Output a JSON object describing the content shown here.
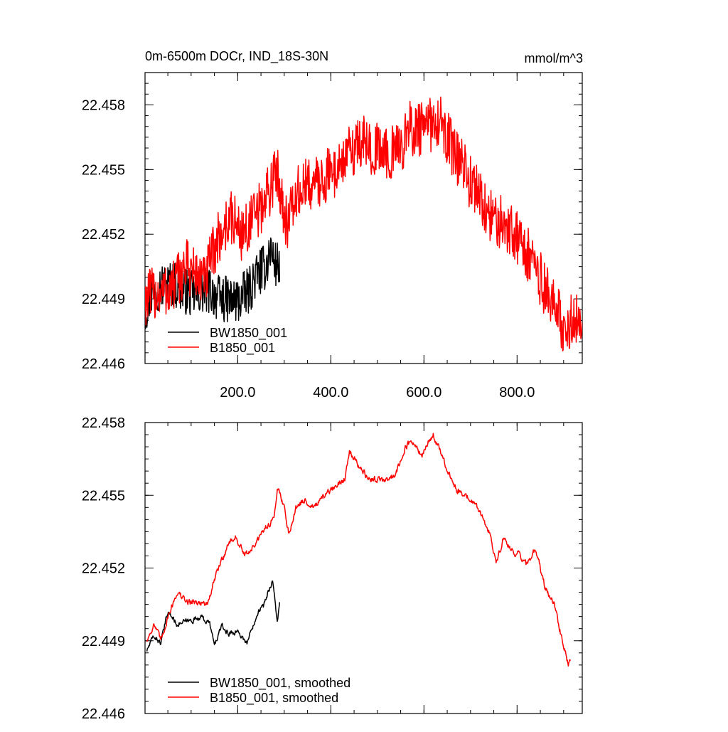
{
  "figure": {
    "title_left": "0m-6500m DOCr, IND_18S-30N",
    "title_right": "mmol/m^3"
  },
  "colors": {
    "black": "#000000",
    "red": "#ff0000"
  },
  "chart_data": [
    {
      "type": "line",
      "panel": "top",
      "title": "0m-6500m DOCr, IND_18S-30N",
      "units": "mmol/m^3",
      "xlim": [
        1,
        940
      ],
      "ylim": [
        22.446,
        22.4595
      ],
      "y_ticks": [
        22.446,
        22.449,
        22.452,
        22.455,
        22.458
      ],
      "y_tick_labels": [
        "22.446",
        "22.449",
        "22.452",
        "22.455",
        "22.458"
      ],
      "x_ticks": [
        200,
        400,
        600,
        800
      ],
      "x_tick_labels": [
        "200.0",
        "400.0",
        "600.0",
        "800.0"
      ],
      "legend_position": "bottom-left",
      "series": [
        {
          "name": "BW1850_001",
          "color": "#000000",
          "noise": 0.0011,
          "anchors": [
            [
              1,
              22.4485
            ],
            [
              20,
              22.4495
            ],
            [
              60,
              22.4497
            ],
            [
              100,
              22.4492
            ],
            [
              140,
              22.4494
            ],
            [
              160,
              22.449
            ],
            [
              200,
              22.4489
            ],
            [
              225,
              22.4494
            ],
            [
              240,
              22.4501
            ],
            [
              260,
              22.4505
            ],
            [
              270,
              22.4513
            ],
            [
              280,
              22.4506
            ],
            [
              290,
              22.4506
            ]
          ]
        },
        {
          "name": "B1850_001",
          "color": "#ff0000",
          "noise": 0.0013,
          "anchors": [
            [
              1,
              22.449
            ],
            [
              30,
              22.4493
            ],
            [
              60,
              22.4495
            ],
            [
              90,
              22.4505
            ],
            [
              130,
              22.4498
            ],
            [
              150,
              22.4514
            ],
            [
              185,
              22.4528
            ],
            [
              210,
              22.452
            ],
            [
              250,
              22.4532
            ],
            [
              285,
              22.4549
            ],
            [
              305,
              22.4525
            ],
            [
              330,
              22.4539
            ],
            [
              350,
              22.4543
            ],
            [
              380,
              22.4545
            ],
            [
              420,
              22.4552
            ],
            [
              460,
              22.4563
            ],
            [
              500,
              22.4559
            ],
            [
              540,
              22.4557
            ],
            [
              570,
              22.4569
            ],
            [
              600,
              22.4568
            ],
            [
              630,
              22.4574
            ],
            [
              660,
              22.456
            ],
            [
              690,
              22.4548
            ],
            [
              720,
              22.4537
            ],
            [
              740,
              22.4528
            ],
            [
              760,
              22.4526
            ],
            [
              790,
              22.4523
            ],
            [
              820,
              22.4512
            ],
            [
              850,
              22.4499
            ],
            [
              880,
              22.4486
            ],
            [
              900,
              22.4478
            ],
            [
              940,
              22.4481
            ]
          ]
        }
      ]
    },
    {
      "type": "line",
      "panel": "bottom",
      "xlim": [
        1,
        940
      ],
      "ylim": [
        22.446,
        22.458
      ],
      "y_ticks": [
        22.446,
        22.449,
        22.452,
        22.455,
        22.458
      ],
      "y_tick_labels": [
        "22.446",
        "22.449",
        "22.452",
        "22.455",
        "22.458"
      ],
      "x_ticks": [
        200,
        400,
        600,
        800
      ],
      "legend_position": "bottom-left",
      "series": [
        {
          "name": "BW1850_001, smoothed",
          "color": "#000000",
          "noise": 0.00022,
          "anchors": [
            [
              5,
              22.4486
            ],
            [
              20,
              22.4492
            ],
            [
              35,
              22.4489
            ],
            [
              50,
              22.4502
            ],
            [
              70,
              22.4497
            ],
            [
              95,
              22.4498
            ],
            [
              120,
              22.45
            ],
            [
              140,
              22.4497
            ],
            [
              150,
              22.4488
            ],
            [
              165,
              22.4496
            ],
            [
              180,
              22.4493
            ],
            [
              200,
              22.4494
            ],
            [
              220,
              22.4489
            ],
            [
              230,
              22.4495
            ],
            [
              245,
              22.4503
            ],
            [
              255,
              22.4504
            ],
            [
              265,
              22.451
            ],
            [
              275,
              22.4515
            ],
            [
              285,
              22.4498
            ],
            [
              290,
              22.4505
            ]
          ]
        },
        {
          "name": "B1850_001, smoothed",
          "color": "#ff0000",
          "noise": 0.00025,
          "anchors": [
            [
              5,
              22.449
            ],
            [
              20,
              22.4497
            ],
            [
              35,
              22.449
            ],
            [
              50,
              22.45
            ],
            [
              70,
              22.451
            ],
            [
              90,
              22.4506
            ],
            [
              115,
              22.4506
            ],
            [
              135,
              22.4505
            ],
            [
              155,
              22.4518
            ],
            [
              180,
              22.453
            ],
            [
              195,
              22.4533
            ],
            [
              215,
              22.4525
            ],
            [
              240,
              22.453
            ],
            [
              260,
              22.4537
            ],
            [
              278,
              22.454
            ],
            [
              285,
              22.4554
            ],
            [
              300,
              22.4545
            ],
            [
              310,
              22.4534
            ],
            [
              325,
              22.4545
            ],
            [
              345,
              22.4548
            ],
            [
              365,
              22.4545
            ],
            [
              380,
              22.4548
            ],
            [
              400,
              22.4552
            ],
            [
              430,
              22.4557
            ],
            [
              440,
              22.4569
            ],
            [
              460,
              22.4562
            ],
            [
              480,
              22.4557
            ],
            [
              520,
              22.4556
            ],
            [
              540,
              22.4559
            ],
            [
              560,
              22.457
            ],
            [
              575,
              22.4572
            ],
            [
              595,
              22.4566
            ],
            [
              610,
              22.4572
            ],
            [
              620,
              22.4575
            ],
            [
              635,
              22.4568
            ],
            [
              650,
              22.456
            ],
            [
              670,
              22.4552
            ],
            [
              690,
              22.455
            ],
            [
              705,
              22.4547
            ],
            [
              715,
              22.4545
            ],
            [
              740,
              22.4535
            ],
            [
              755,
              22.4522
            ],
            [
              770,
              22.4532
            ],
            [
              790,
              22.4527
            ],
            [
              805,
              22.4526
            ],
            [
              820,
              22.4521
            ],
            [
              840,
              22.4528
            ],
            [
              860,
              22.4512
            ],
            [
              880,
              22.4505
            ],
            [
              895,
              22.4492
            ],
            [
              905,
              22.4485
            ],
            [
              910,
              22.448
            ],
            [
              915,
              22.4481
            ]
          ]
        }
      ]
    }
  ]
}
